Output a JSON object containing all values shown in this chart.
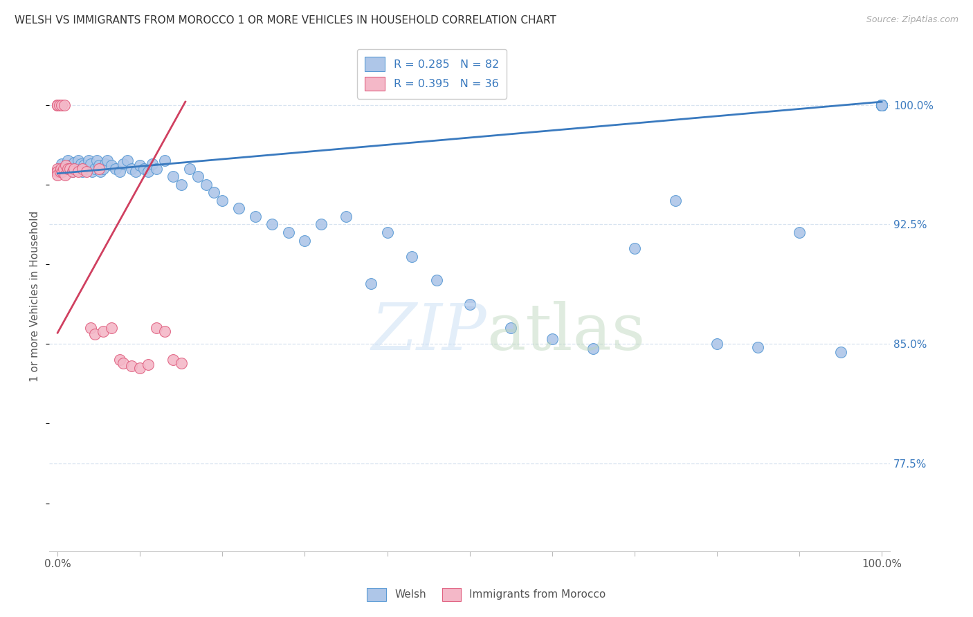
{
  "title": "WELSH VS IMMIGRANTS FROM MOROCCO 1 OR MORE VEHICLES IN HOUSEHOLD CORRELATION CHART",
  "source": "Source: ZipAtlas.com",
  "ylabel": "1 or more Vehicles in Household",
  "legend_welsh": "Welsh",
  "legend_morocco": "Immigrants from Morocco",
  "r_welsh": 0.285,
  "n_welsh": 82,
  "r_morocco": 0.395,
  "n_morocco": 36,
  "welsh_color": "#aec6e8",
  "morocco_color": "#f4b8c8",
  "welsh_edge_color": "#5b9bd5",
  "morocco_edge_color": "#e06080",
  "welsh_line_color": "#3a7abf",
  "morocco_line_color": "#d04060",
  "legend_text_color": "#3a7abf",
  "background_color": "#ffffff",
  "grid_color": "#d8e4f0",
  "watermark_zip_color": "#cddff0",
  "watermark_atlas_color": "#b8d4b8",
  "ytick_color": "#3a7abf",
  "xmin": 0.0,
  "xmax": 1.0,
  "ymin": 0.72,
  "ymax": 1.04,
  "yticks": [
    0.775,
    0.85,
    0.925,
    1.0
  ],
  "ytick_labels": [
    "77.5%",
    "85.0%",
    "92.5%",
    "100.0%"
  ],
  "welsh_line_x0": 0.0,
  "welsh_line_x1": 1.0,
  "welsh_line_y0": 0.957,
  "welsh_line_y1": 1.002,
  "morocco_line_x0": 0.0,
  "morocco_line_x1": 0.155,
  "morocco_line_y0": 0.857,
  "morocco_line_y1": 1.002,
  "welsh_x": [
    0.005,
    0.008,
    0.01,
    0.012,
    0.015,
    0.018,
    0.02,
    0.022,
    0.025,
    0.028,
    0.03,
    0.032,
    0.035,
    0.038,
    0.04,
    0.042,
    0.045,
    0.048,
    0.05,
    0.052,
    0.055,
    0.058,
    0.06,
    0.065,
    0.07,
    0.075,
    0.08,
    0.085,
    0.09,
    0.095,
    0.1,
    0.105,
    0.11,
    0.115,
    0.12,
    0.13,
    0.14,
    0.15,
    0.16,
    0.17,
    0.18,
    0.19,
    0.2,
    0.22,
    0.24,
    0.26,
    0.28,
    0.3,
    0.32,
    0.35,
    0.38,
    0.4,
    0.43,
    0.46,
    0.5,
    0.55,
    0.6,
    0.65,
    0.7,
    0.75,
    0.8,
    0.85,
    0.9,
    0.95,
    1.0,
    1.0,
    1.0,
    1.0,
    1.0,
    1.0,
    1.0,
    1.0,
    1.0,
    1.0,
    1.0,
    1.0,
    1.0,
    1.0,
    1.0,
    1.0,
    1.0,
    1.0
  ],
  "welsh_y": [
    0.963,
    0.961,
    0.96,
    0.965,
    0.962,
    0.958,
    0.964,
    0.96,
    0.965,
    0.963,
    0.958,
    0.962,
    0.96,
    0.965,
    0.963,
    0.958,
    0.96,
    0.965,
    0.962,
    0.958,
    0.96,
    0.963,
    0.965,
    0.962,
    0.96,
    0.958,
    0.963,
    0.965,
    0.96,
    0.958,
    0.962,
    0.96,
    0.958,
    0.963,
    0.96,
    0.965,
    0.955,
    0.95,
    0.96,
    0.955,
    0.95,
    0.945,
    0.94,
    0.935,
    0.93,
    0.925,
    0.92,
    0.915,
    0.925,
    0.93,
    0.888,
    0.92,
    0.905,
    0.89,
    0.875,
    0.86,
    0.853,
    0.847,
    0.91,
    0.94,
    0.85,
    0.848,
    0.92,
    0.845,
    1.0,
    1.0,
    1.0,
    1.0,
    1.0,
    1.0,
    1.0,
    1.0,
    1.0,
    1.0,
    1.0,
    1.0,
    1.0,
    1.0,
    1.0,
    1.0,
    1.0,
    1.0
  ],
  "morocco_x": [
    0.0,
    0.0,
    0.0,
    0.0,
    0.0,
    0.0,
    0.002,
    0.003,
    0.004,
    0.005,
    0.006,
    0.007,
    0.008,
    0.009,
    0.01,
    0.012,
    0.015,
    0.018,
    0.02,
    0.025,
    0.03,
    0.035,
    0.04,
    0.045,
    0.05,
    0.055,
    0.065,
    0.075,
    0.08,
    0.09,
    0.1,
    0.11,
    0.12,
    0.13,
    0.14,
    0.15
  ],
  "morocco_y": [
    1.0,
    1.0,
    1.0,
    0.96,
    0.958,
    0.956,
    1.0,
    0.958,
    0.96,
    1.0,
    0.958,
    0.96,
    1.0,
    0.956,
    0.962,
    0.96,
    0.96,
    0.958,
    0.96,
    0.958,
    0.96,
    0.958,
    0.86,
    0.856,
    0.96,
    0.858,
    0.86,
    0.84,
    0.838,
    0.836,
    0.835,
    0.837,
    0.86,
    0.858,
    0.84,
    0.838
  ]
}
